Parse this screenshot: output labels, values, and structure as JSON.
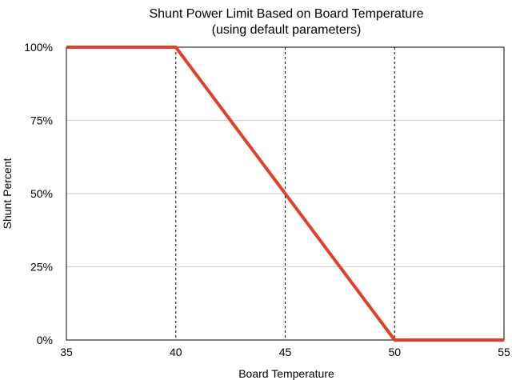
{
  "chart_data": {
    "type": "line",
    "title": "Shunt Power Limit Based on Board Temperature",
    "subtitle": "(using default parameters)",
    "xlabel": "Board Temperature",
    "ylabel": "Shunt Percent",
    "xlim": [
      35,
      55
    ],
    "ylim": [
      0,
      100
    ],
    "x_ticks": [
      35,
      40,
      45,
      50,
      55
    ],
    "x_tick_labels": [
      "35",
      "40",
      "45",
      "50",
      "55"
    ],
    "y_ticks": [
      0,
      25,
      50,
      75,
      100
    ],
    "y_tick_labels": [
      "0%",
      "25%",
      "50%",
      "75%",
      "100%"
    ],
    "horizontal_grid": true,
    "vertical_dashed_grid_at": [
      40,
      45,
      50
    ],
    "legend": "none",
    "series": [
      {
        "color": "#e0402a",
        "x": [
          35,
          40,
          50,
          55
        ],
        "y": [
          100,
          100,
          0,
          0
        ]
      }
    ]
  }
}
